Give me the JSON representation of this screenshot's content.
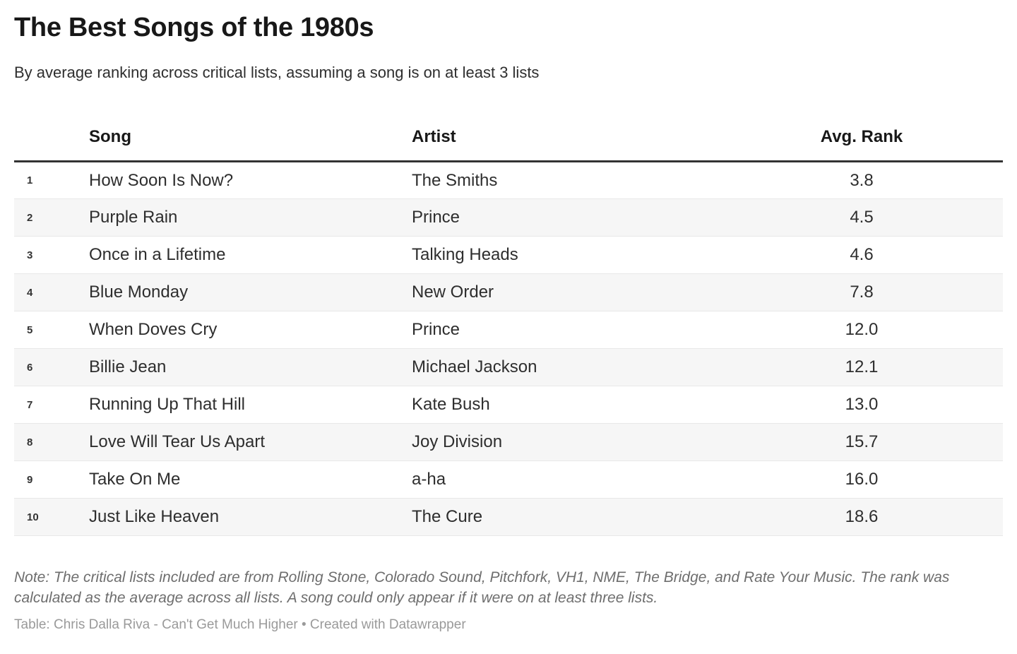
{
  "header": {
    "title": "The Best Songs of the 1980s",
    "subtitle": "By average ranking across critical lists, assuming a song is on at least 3 lists"
  },
  "chart_data": {
    "type": "table",
    "title": "The Best Songs of the 1980s",
    "subtitle": "By average ranking across critical lists, assuming a song is on at least 3 lists",
    "columns": {
      "index": "",
      "song": "Song",
      "artist": "Artist",
      "avg_rank": "Avg. Rank"
    },
    "rows": [
      {
        "rank": "1",
        "song": "How Soon Is Now?",
        "artist": "The Smiths",
        "avg_rank": "3.8"
      },
      {
        "rank": "2",
        "song": "Purple Rain",
        "artist": "Prince",
        "avg_rank": "4.5"
      },
      {
        "rank": "3",
        "song": "Once in a Lifetime",
        "artist": "Talking Heads",
        "avg_rank": "4.6"
      },
      {
        "rank": "4",
        "song": "Blue Monday",
        "artist": "New Order",
        "avg_rank": "7.8"
      },
      {
        "rank": "5",
        "song": "When Doves Cry",
        "artist": "Prince",
        "avg_rank": "12.0"
      },
      {
        "rank": "6",
        "song": "Billie Jean",
        "artist": "Michael Jackson",
        "avg_rank": "12.1"
      },
      {
        "rank": "7",
        "song": "Running Up That Hill",
        "artist": "Kate Bush",
        "avg_rank": "13.0"
      },
      {
        "rank": "8",
        "song": "Love Will Tear Us Apart",
        "artist": "Joy Division",
        "avg_rank": "15.7"
      },
      {
        "rank": "9",
        "song": "Take On Me",
        "artist": "a-ha",
        "avg_rank": "16.0"
      },
      {
        "rank": "10",
        "song": "Just Like Heaven",
        "artist": "The Cure",
        "avg_rank": "18.6"
      }
    ],
    "note": "Note: The critical lists included are from Rolling Stone, Colorado Sound, Pitchfork, VH1, NME, The Bridge, and Rate Your Music. The rank was calculated as the average across all lists. A song could only appear if it were on at least three lists.",
    "attribution": "Table: Chris Dalla Riva - Can't Get Much Higher • Created with Datawrapper"
  },
  "colors": {
    "title_text": "#181818",
    "body_text": "#2e2e2e",
    "header_rule": "#333333",
    "row_separator": "#e8e8e8",
    "row_stripe": "#f6f6f6",
    "note_text": "#6e6e6e",
    "attribution_text": "#9a9a9a",
    "background": "#ffffff"
  }
}
